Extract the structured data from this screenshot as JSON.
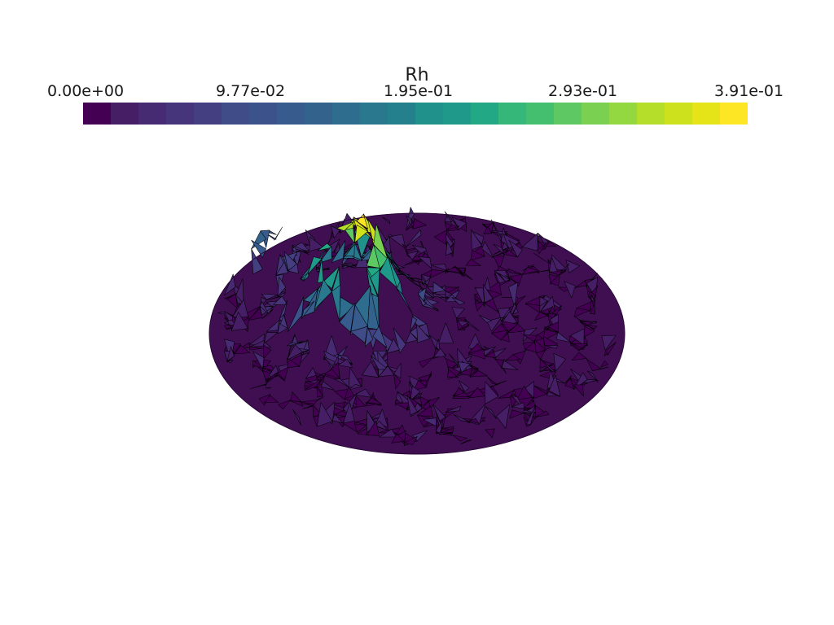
{
  "colorbar": {
    "title": "Rh",
    "tick_labels": [
      "0.00e+00",
      "9.77e-02",
      "1.95e-01",
      "2.93e-01",
      "3.91e-01"
    ],
    "range": [
      0.0,
      0.391
    ],
    "colormap": "viridis",
    "colors": [
      "#440154",
      "#461e66",
      "#472b72",
      "#46357a",
      "#433f80",
      "#3f4c87",
      "#3b528b",
      "#375b8d",
      "#33638d",
      "#2e6d8e",
      "#2a788e",
      "#25808e",
      "#21918c",
      "#1f9a8a",
      "#22a884",
      "#35b779",
      "#44bf70",
      "#5ec962",
      "#7ad151",
      "#93d741",
      "#b5de2b",
      "#cde11d",
      "#e5e419",
      "#fde725"
    ]
  },
  "surface": {
    "field": "Rh",
    "mesh_edges": "visible",
    "edge_color": "#000000"
  }
}
